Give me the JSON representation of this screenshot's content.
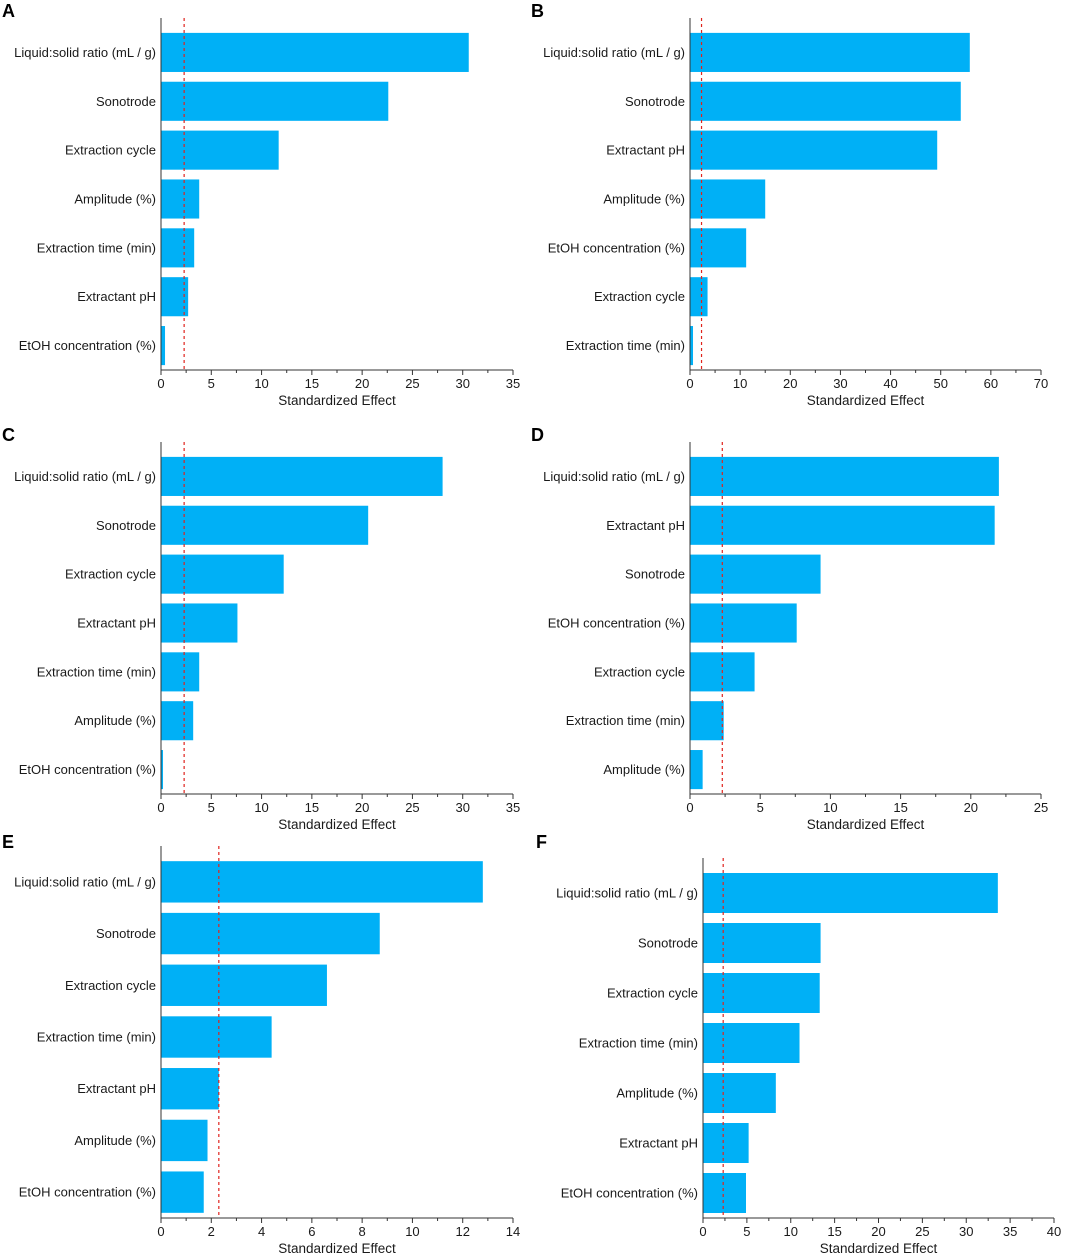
{
  "figure": {
    "axis_title": "Standardized Effect"
  },
  "colors": {
    "bar": "#00b0f6",
    "reference_line": "#e0231c"
  },
  "chart_data": [
    {
      "panel": "A",
      "type": "bar",
      "orientation": "horizontal",
      "xlabel": "Standardized Effect",
      "xlim": [
        0,
        35
      ],
      "xticks": [
        0,
        5,
        10,
        15,
        20,
        25,
        30,
        35
      ],
      "reference_line": 2.3,
      "categories": [
        "Liquid:solid ratio (mL / g)",
        "Sonotrode",
        "Extraction cycle",
        "Amplitude (%)",
        "Extraction time (min)",
        "Extractant pH",
        "EtOH concentration (%)"
      ],
      "values": [
        30.6,
        22.6,
        11.7,
        3.8,
        3.3,
        2.7,
        0.4
      ]
    },
    {
      "panel": "B",
      "type": "bar",
      "orientation": "horizontal",
      "xlabel": "Standardized Effect",
      "xlim": [
        0,
        70
      ],
      "xticks": [
        0,
        10,
        20,
        30,
        40,
        50,
        60,
        70
      ],
      "reference_line": 2.3,
      "categories": [
        "Liquid:solid ratio (mL / g)",
        "Sonotrode",
        "Extractant pH",
        "Amplitude (%)",
        "EtOH concentration (%)",
        "Extraction cycle",
        "Extraction time (min)"
      ],
      "values": [
        55.8,
        54.0,
        49.3,
        15.0,
        11.2,
        3.5,
        0.6
      ]
    },
    {
      "panel": "C",
      "type": "bar",
      "orientation": "horizontal",
      "xlabel": "Standardized Effect",
      "xlim": [
        0,
        35
      ],
      "xticks": [
        0,
        5,
        10,
        15,
        20,
        25,
        30,
        35
      ],
      "reference_line": 2.3,
      "categories": [
        "Liquid:solid ratio (mL / g)",
        "Sonotrode",
        "Extraction cycle",
        "Extractant pH",
        "Extraction time (min)",
        "Amplitude (%)",
        "EtOH concentration (%)"
      ],
      "values": [
        28.0,
        20.6,
        12.2,
        7.6,
        3.8,
        3.2,
        0.2
      ]
    },
    {
      "panel": "D",
      "type": "bar",
      "orientation": "horizontal",
      "xlabel": "Standardized Effect",
      "xlim": [
        0,
        25
      ],
      "xticks": [
        0,
        5,
        10,
        15,
        20,
        25
      ],
      "reference_line": 2.3,
      "categories": [
        "Liquid:solid ratio (mL / g)",
        "Extractant pH",
        "Sonotrode",
        "EtOH concentration (%)",
        "Extraction cycle",
        "Extraction time (min)",
        "Amplitude (%)"
      ],
      "values": [
        22.0,
        21.7,
        9.3,
        7.6,
        4.6,
        2.4,
        0.9
      ]
    },
    {
      "panel": "E",
      "type": "bar",
      "orientation": "horizontal",
      "xlabel": "Standardized Effect",
      "xlim": [
        0,
        14
      ],
      "xticks": [
        0,
        2,
        4,
        6,
        8,
        10,
        12,
        14
      ],
      "reference_line": 2.3,
      "categories": [
        "Liquid:solid ratio (mL / g)",
        "Sonotrode",
        "Extraction cycle",
        "Extraction time (min)",
        "Extractant pH",
        "Amplitude (%)",
        "EtOH concentration (%)"
      ],
      "values": [
        12.8,
        8.7,
        6.6,
        4.4,
        2.3,
        1.85,
        1.7
      ]
    },
    {
      "panel": "F",
      "type": "bar",
      "orientation": "horizontal",
      "xlabel": "Standardized Effect",
      "xlim": [
        0,
        40
      ],
      "xticks": [
        0,
        5,
        10,
        15,
        20,
        25,
        30,
        35,
        40
      ],
      "reference_line": 2.3,
      "categories": [
        "Liquid:solid ratio (mL / g)",
        "Sonotrode",
        "Extraction cycle",
        "Extraction time (min)",
        "Amplitude (%)",
        "Extractant pH",
        "EtOH concentration (%)"
      ],
      "values": [
        33.6,
        13.4,
        13.3,
        11.0,
        8.3,
        5.2,
        4.9
      ]
    }
  ]
}
